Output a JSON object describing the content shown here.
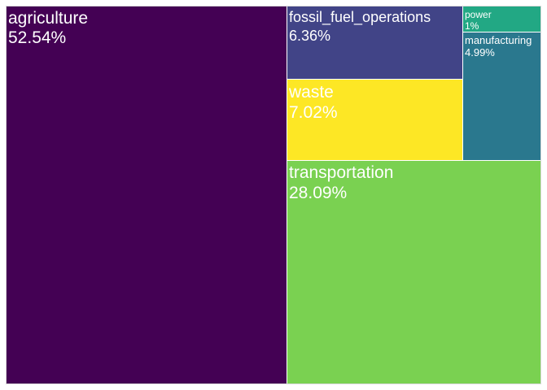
{
  "chart_data": {
    "type": "treemap",
    "items": [
      {
        "name": "agriculture",
        "label": "52.54%",
        "value": 52.54,
        "color": "#440154"
      },
      {
        "name": "transportation",
        "label": "28.09%",
        "value": 28.09,
        "color": "#7AD151"
      },
      {
        "name": "waste",
        "label": "7.02%",
        "value": 7.02,
        "color": "#FDE725"
      },
      {
        "name": "fossil_fuel_operations",
        "label": "6.36%",
        "value": 6.36,
        "color": "#414487"
      },
      {
        "name": "manufacturing",
        "label": "4.99%",
        "value": 4.99,
        "color": "#2A788E"
      },
      {
        "name": "power",
        "label": "1%",
        "value": 1.0,
        "color": "#22A884"
      }
    ]
  }
}
